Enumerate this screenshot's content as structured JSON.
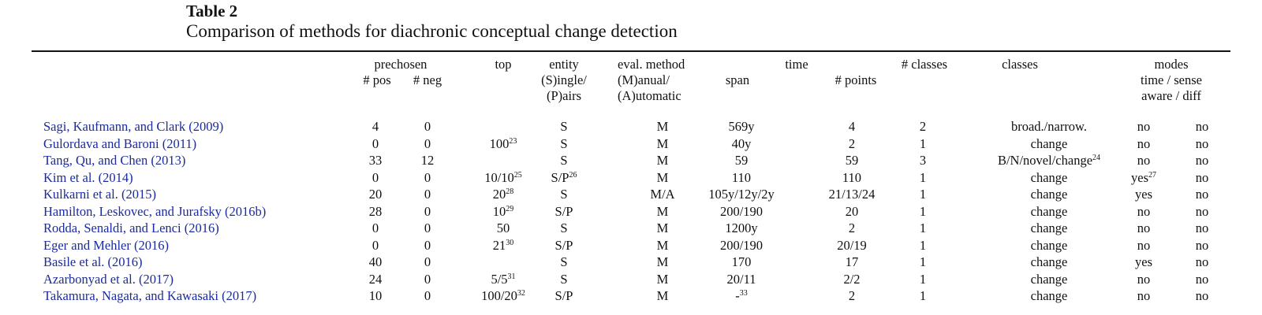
{
  "caption": {
    "label": "Table 2",
    "text": "Comparison of methods for diachronic conceptual change detection"
  },
  "headers": {
    "prechosen": "prechosen",
    "pos": "# pos",
    "neg": "# neg",
    "top": "top",
    "entity": [
      "entity",
      "(S)ingle/",
      "(P)airs"
    ],
    "eval": [
      "eval. method",
      "(M)anual/",
      "(A)utomatic"
    ],
    "time": "time",
    "span": "span",
    "points": "# points",
    "nclasses": "# classes",
    "classes": "classes",
    "modes": "modes",
    "modes_sub1": "time / sense",
    "modes_sub2": "aware / diff"
  },
  "rows": [
    {
      "cite": "Sagi, Kaufmann, and Clark (2009)",
      "pos": "4",
      "neg": "0",
      "top": "",
      "top_sup": "",
      "entity": "S",
      "entity_sup": "",
      "eval": "M",
      "span": "569y",
      "span_sup": "",
      "points": "4",
      "nclasses": "2",
      "classes": "broad./narrow.",
      "classes_sup": "",
      "aware": "no",
      "aware_sup": "",
      "diff": "no"
    },
    {
      "cite": "Gulordava and Baroni (2011)",
      "pos": "0",
      "neg": "0",
      "top": "100",
      "top_sup": "23",
      "entity": "S",
      "entity_sup": "",
      "eval": "M",
      "span": "40y",
      "span_sup": "",
      "points": "2",
      "nclasses": "1",
      "classes": "change",
      "classes_sup": "",
      "aware": "no",
      "aware_sup": "",
      "diff": "no"
    },
    {
      "cite": "Tang, Qu, and Chen (2013)",
      "pos": "33",
      "neg": "12",
      "top": "",
      "top_sup": "",
      "entity": "S",
      "entity_sup": "",
      "eval": "M",
      "span": "59",
      "span_sup": "",
      "points": "59",
      "nclasses": "3",
      "classes": "B/N/novel/change",
      "classes_sup": "24",
      "aware": "no",
      "aware_sup": "",
      "diff": "no"
    },
    {
      "cite": "Kim et al. (2014)",
      "pos": "0",
      "neg": "0",
      "top": "10/10",
      "top_sup": "25",
      "entity": "S/P",
      "entity_sup": "26",
      "eval": "M",
      "span": "110",
      "span_sup": "",
      "points": "110",
      "nclasses": "1",
      "classes": "change",
      "classes_sup": "",
      "aware": "yes",
      "aware_sup": "27",
      "diff": "no"
    },
    {
      "cite": "Kulkarni et al. (2015)",
      "pos": "20",
      "neg": "0",
      "top": "20",
      "top_sup": "28",
      "entity": "S",
      "entity_sup": "",
      "eval": "M/A",
      "span": "105y/12y/2y",
      "span_sup": "",
      "points": "21/13/24",
      "nclasses": "1",
      "classes": "change",
      "classes_sup": "",
      "aware": "yes",
      "aware_sup": "",
      "diff": "no"
    },
    {
      "cite": "Hamilton, Leskovec, and Jurafsky (2016b)",
      "pos": "28",
      "neg": "0",
      "top": "10",
      "top_sup": "29",
      "entity": "S/P",
      "entity_sup": "",
      "eval": "M",
      "span": "200/190",
      "span_sup": "",
      "points": "20",
      "nclasses": "1",
      "classes": "change",
      "classes_sup": "",
      "aware": "no",
      "aware_sup": "",
      "diff": "no"
    },
    {
      "cite": "Rodda, Senaldi, and Lenci (2016)",
      "pos": "0",
      "neg": "0",
      "top": "50",
      "top_sup": "",
      "entity": "S",
      "entity_sup": "",
      "eval": "M",
      "span": "1200y",
      "span_sup": "",
      "points": "2",
      "nclasses": "1",
      "classes": "change",
      "classes_sup": "",
      "aware": "no",
      "aware_sup": "",
      "diff": "no"
    },
    {
      "cite": "Eger and Mehler (2016)",
      "pos": "0",
      "neg": "0",
      "top": "21",
      "top_sup": "30",
      "entity": "S/P",
      "entity_sup": "",
      "eval": "M",
      "span": "200/190",
      "span_sup": "",
      "points": "20/19",
      "nclasses": "1",
      "classes": "change",
      "classes_sup": "",
      "aware": "no",
      "aware_sup": "",
      "diff": "no"
    },
    {
      "cite": "Basile et al. (2016)",
      "pos": "40",
      "neg": "0",
      "top": "",
      "top_sup": "",
      "entity": "S",
      "entity_sup": "",
      "eval": "M",
      "span": "170",
      "span_sup": "",
      "points": "17",
      "nclasses": "1",
      "classes": "change",
      "classes_sup": "",
      "aware": "yes",
      "aware_sup": "",
      "diff": "no"
    },
    {
      "cite": "Azarbonyad et al. (2017)",
      "pos": "24",
      "neg": "0",
      "top": "5/5",
      "top_sup": "31",
      "entity": "S",
      "entity_sup": "",
      "eval": "M",
      "span": "20/11",
      "span_sup": "",
      "points": "2/2",
      "nclasses": "1",
      "classes": "change",
      "classes_sup": "",
      "aware": "no",
      "aware_sup": "",
      "diff": "no"
    },
    {
      "cite": "Takamura, Nagata, and Kawasaki (2017)",
      "pos": "10",
      "neg": "0",
      "top": "100/20",
      "top_sup": "32",
      "entity": "S/P",
      "entity_sup": "",
      "eval": "M",
      "span": "-",
      "span_sup": "33",
      "points": "2",
      "nclasses": "1",
      "classes": "change",
      "classes_sup": "",
      "aware": "no",
      "aware_sup": "",
      "diff": "no"
    }
  ]
}
